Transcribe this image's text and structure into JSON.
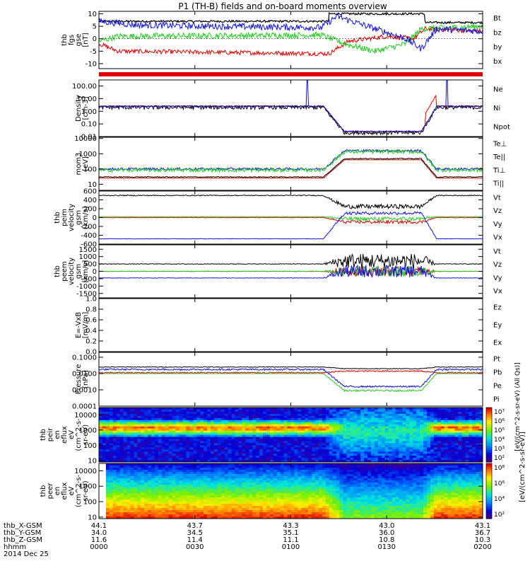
{
  "title": "P1 (TH-B) fields and on-board moments overview",
  "colors": {
    "black": "#000000",
    "red": "#e00000",
    "green": "#22cc22",
    "blue": "#1010dd"
  },
  "chart_data": [
    {
      "type": "line",
      "id": "fgs",
      "ylabel": [
        "thb",
        "fgs",
        "gse",
        "[nT]"
      ],
      "ylim": [
        -12,
        11
      ],
      "scale": "linear",
      "ticks": [
        "10",
        "5",
        "0",
        "-5",
        "-10"
      ],
      "tickvals": [
        10,
        5,
        0,
        -5,
        -10
      ],
      "series": [
        {
          "name": "Bt",
          "color": "black"
        },
        {
          "name": "bz",
          "color": "red"
        },
        {
          "name": "by",
          "color": "green"
        },
        {
          "name": "bx",
          "color": "blue"
        }
      ]
    },
    {
      "type": "line",
      "id": "density",
      "ylabel": [
        "Density",
        "[cm-3]"
      ],
      "ylim": [
        0.01,
        300
      ],
      "scale": "log",
      "ticks": [
        "100.00",
        "10.00",
        "1.00",
        "0.10",
        "0.01"
      ],
      "tickvals": [
        100,
        10,
        1,
        0.1,
        0.01
      ],
      "series": [
        {
          "name": "Ne",
          "color": "red"
        },
        {
          "name": "Ni",
          "color": "black"
        },
        {
          "name": "Npot",
          "color": "blue"
        }
      ]
    },
    {
      "type": "line",
      "id": "temp",
      "ylabel": [
        "mom3",
        "[eV]"
      ],
      "ylim": [
        4,
        12000
      ],
      "scale": "log",
      "ticks": [
        "10000",
        "1000",
        "100",
        "10"
      ],
      "tickvals": [
        10000,
        1000,
        100,
        10
      ],
      "series": [
        {
          "name": "Te⊥",
          "color": "red"
        },
        {
          "name": "Te||",
          "color": "black"
        },
        {
          "name": "Ti⊥",
          "color": "blue"
        },
        {
          "name": "Ti||",
          "color": "green"
        }
      ]
    },
    {
      "type": "line",
      "id": "peim",
      "ylabel": [
        "thb",
        "peim",
        "velocity",
        "gsm",
        "[km/s]"
      ],
      "ylim": [
        -600,
        600
      ],
      "scale": "linear",
      "ticks": [
        "600",
        "400",
        "200",
        "0",
        "-200",
        "-400",
        "-600"
      ],
      "tickvals": [
        600,
        400,
        200,
        0,
        -200,
        -400,
        -600
      ],
      "series": [
        {
          "name": "Vt",
          "color": "black"
        },
        {
          "name": "Vz",
          "color": "red"
        },
        {
          "name": "Vy",
          "color": "green"
        },
        {
          "name": "Vx",
          "color": "blue"
        }
      ]
    },
    {
      "type": "line",
      "id": "peem",
      "ylabel": [
        "thb",
        "peem",
        "velocity",
        "gsm",
        "[km/s]"
      ],
      "ylim": [
        -1800,
        1800
      ],
      "scale": "linear",
      "ticks": [
        "1500",
        "1000",
        "500",
        "0",
        "-500",
        "-1000",
        "-1500"
      ],
      "tickvals": [
        1500,
        1000,
        500,
        0,
        -500,
        -1000,
        -1500
      ],
      "series": [
        {
          "name": "Vt",
          "color": "black"
        },
        {
          "name": "Vz",
          "color": "red"
        },
        {
          "name": "Vy",
          "color": "green"
        },
        {
          "name": "Vx",
          "color": "blue"
        }
      ]
    },
    {
      "type": "line",
      "id": "efield",
      "ylabel": [
        "E=-VxB",
        "[mV/m]"
      ],
      "ylim": [
        0,
        1
      ],
      "scale": "linear",
      "ticks": [
        "1.0",
        "0.8",
        "0.6",
        "0.4",
        "0.2",
        "0.0"
      ],
      "tickvals": [
        1,
        0.8,
        0.6,
        0.4,
        0.2,
        0
      ],
      "series": [
        {
          "name": "Ez",
          "color": "red"
        },
        {
          "name": "Ey",
          "color": "green"
        },
        {
          "name": "Ex",
          "color": "blue"
        }
      ]
    },
    {
      "type": "line",
      "id": "pressure",
      "ylabel": [
        "Pressure",
        "[nPa]"
      ],
      "ylim": [
        0.0001,
        0.2
      ],
      "scale": "log",
      "ticks": [
        "0.1000",
        "0.0100",
        "0.0010",
        "0.0001"
      ],
      "tickvals": [
        0.1,
        0.01,
        0.001,
        0.0001
      ],
      "series": [
        {
          "name": "Pt",
          "color": "black"
        },
        {
          "name": "Pb",
          "color": "red"
        },
        {
          "name": "Pe",
          "color": "green"
        },
        {
          "name": "Pi",
          "color": "blue"
        }
      ]
    },
    {
      "type": "heatmap",
      "id": "peir",
      "ylabel": [
        "thb",
        "peir",
        "en",
        "eflux",
        "eV",
        "(cm^2-s-",
        "sr-eV)"
      ],
      "ylim": [
        8,
        30000
      ],
      "scale": "log",
      "ticks": [
        "10000",
        "1000",
        "100",
        "10"
      ],
      "tickvals": [
        10000,
        1000,
        100,
        10
      ],
      "colorbar": {
        "label": "[eV/(cm^2-s-sr-eV)]",
        "ticks": [
          "10⁷",
          "10⁶",
          "10⁵",
          "10⁴",
          "10³",
          "10²"
        ]
      }
    },
    {
      "type": "heatmap",
      "id": "peer",
      "ylabel": [
        "thb",
        "peer",
        "en",
        "eflux",
        "eV",
        "(cm^2-s-",
        "sr-eV)"
      ],
      "ylim": [
        8,
        30000
      ],
      "scale": "log",
      "ticks": [
        "10000",
        "1000",
        "100",
        "10"
      ],
      "tickvals": [
        10000,
        1000,
        100,
        10
      ],
      "colorbar": {
        "label": "[eV/(cm^2-s-sr-eV)]",
        "ticks": [
          "10⁸",
          "10⁶",
          "10⁴",
          "10²"
        ]
      }
    }
  ],
  "overlay_label": "[eV/(cm^2-s-sr-eV) (All Qs)]",
  "colorbar_side_label": "[eV/(cm^2-s-sr-eV)]",
  "xaxis": {
    "rows": [
      {
        "label": "thb_X-GSM",
        "values": [
          "44.1",
          "43.7",
          "43.3",
          "43.0",
          "43.1"
        ]
      },
      {
        "label": "thb_Y-GSM",
        "values": [
          "34.0",
          "34.5",
          "35.1",
          "36.0",
          "36.7"
        ]
      },
      {
        "label": "thb_Z-GSM",
        "values": [
          "11.6",
          "11.4",
          "11.1",
          "10.8",
          "10.3"
        ]
      },
      {
        "label": "hhmm",
        "values": [
          "0000",
          "0030",
          "0100",
          "0130",
          "0200"
        ]
      }
    ],
    "date": "2014 Dec 25"
  }
}
